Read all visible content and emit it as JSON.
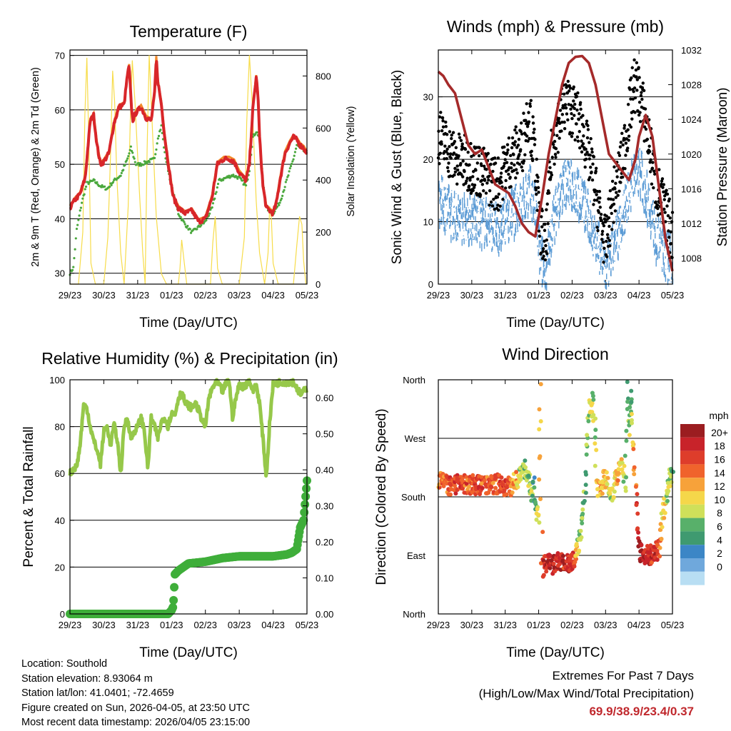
{
  "colors": {
    "temp_red": "#d8262a",
    "temp_orange": "#f28a2b",
    "dewpoint_green": "#4aa83d",
    "solar_yellow": "#f7dc4a",
    "gust_black": "#000000",
    "wind_blue": "#5b9bd5",
    "pressure_maroon": "#a52a2a",
    "rh_lightgreen": "#96c84a",
    "precip_green": "#3fae3a",
    "extremes_red": "#c0282d"
  },
  "x_tick_labels": [
    "29/23",
    "30/23",
    "31/23",
    "01/23",
    "02/23",
    "03/23",
    "04/23",
    "05/23"
  ],
  "info": {
    "location": "Location: Southold",
    "elevation": "Station elevation: 8.93064 m",
    "latlon": "Station lat/lon: 41.0401; -72.4659",
    "created": "Figure created on Sun, 2026-04-05, at 23:50 UTC",
    "latest": "Most recent data timestamp: 2026/04/05 23:15:00"
  },
  "extremes": {
    "title": "Extremes For Past 7 Days",
    "subtitle": "(High/Low/Max Wind/Total Precipitation)",
    "values": "69.9/38.9/23.4/0.37"
  },
  "chart_data": [
    {
      "id": "temperature",
      "type": "line",
      "title": "Temperature (F)",
      "xlabel": "Time (Day/UTC)",
      "ylabel": "2m & 9m T (Red, Orange) & 2m Td (Green)",
      "ylabel_right": "Solar Insolation (Yellow)",
      "ylim": [
        28,
        71
      ],
      "ylim_right": [
        0,
        900
      ],
      "xlim": [
        0,
        7
      ],
      "yticks": [
        30,
        40,
        50,
        60,
        70
      ],
      "yticks_right": [
        0,
        200,
        400,
        600,
        800
      ],
      "gridlines": [
        30,
        40,
        50,
        60,
        70
      ],
      "series": [
        {
          "name": "2m T",
          "color": "#d8262a",
          "x": [
            0,
            0.15,
            0.3,
            0.45,
            0.6,
            0.7,
            0.8,
            0.9,
            1.0,
            1.15,
            1.3,
            1.45,
            1.6,
            1.7,
            1.75,
            1.8,
            1.85,
            1.95,
            2.1,
            2.25,
            2.4,
            2.5,
            2.55,
            2.6,
            2.7,
            2.8,
            2.95,
            3.05,
            3.2,
            3.4,
            3.6,
            3.8,
            4.0,
            4.2,
            4.35,
            4.55,
            4.7,
            4.85,
            5.0,
            5.2,
            5.3,
            5.4,
            5.5,
            5.55,
            5.6,
            5.7,
            5.8,
            6.0,
            6.1,
            6.2,
            6.35,
            6.5,
            6.6,
            6.7,
            6.8,
            6.9,
            7.0
          ],
          "y": [
            42,
            43.5,
            44.5,
            47.5,
            58,
            59,
            53.5,
            50,
            50.5,
            52,
            57.5,
            60.5,
            61,
            66.5,
            68,
            62,
            58,
            59.5,
            60.5,
            58.5,
            58,
            63,
            69.5,
            65,
            61,
            55,
            48,
            44,
            42,
            41,
            41.5,
            39.5,
            40,
            44,
            50,
            51,
            51,
            50.5,
            48.5,
            47,
            50,
            60,
            66,
            63,
            55,
            46,
            42,
            41,
            43,
            47,
            52,
            54,
            55,
            54.5,
            53.5,
            53,
            52
          ]
        },
        {
          "name": "2m Td",
          "color": "#4aa83d",
          "x": [
            0,
            0.1,
            0.2,
            0.35,
            0.5,
            0.7,
            0.9,
            1.1,
            1.3,
            1.5,
            1.7,
            1.8,
            1.95,
            2.1,
            2.3,
            2.5,
            2.6,
            2.7,
            2.8,
            3.0,
            3.2,
            3.4,
            3.6,
            3.8,
            4.0,
            4.2,
            4.4,
            4.6,
            4.8,
            5.0,
            5.2,
            5.3,
            5.4,
            5.5,
            5.6,
            5.7,
            5.8,
            6.0,
            6.2,
            6.4,
            6.6,
            6.7,
            6.8,
            7.0
          ],
          "y": [
            30,
            31,
            38,
            43,
            46.5,
            47,
            46,
            45.5,
            47,
            48,
            51,
            53,
            50,
            50,
            50.5,
            51,
            55,
            57,
            52,
            46,
            41,
            39,
            37.5,
            38.5,
            39.5,
            42,
            47,
            47.5,
            48,
            47.5,
            46,
            49,
            55,
            56,
            55,
            47,
            42,
            41,
            43,
            47,
            51,
            53.5,
            53,
            52
          ]
        },
        {
          "name": "Solar Insolation",
          "color": "#f7dc4a",
          "axis": "right",
          "x": [
            0.0,
            0.25,
            0.38,
            0.44,
            0.5,
            0.56,
            0.62,
            0.75,
            0.9,
            1.0,
            1.12,
            1.2,
            1.26,
            1.32,
            1.38,
            1.5,
            1.6,
            1.72,
            1.78,
            1.84,
            1.92,
            2.05,
            2.15,
            2.22,
            2.28,
            2.34,
            2.42,
            2.55,
            2.7,
            2.85,
            3.0,
            3.2,
            3.25,
            3.3,
            3.37,
            3.45,
            3.6,
            3.8,
            4.0,
            4.15,
            4.22,
            4.29,
            4.36,
            4.5,
            4.65,
            4.8,
            5.0,
            5.15,
            5.22,
            5.3,
            5.38,
            5.5,
            5.6,
            5.75,
            5.85,
            5.9,
            5.95,
            6.0,
            6.15,
            6.22,
            6.3,
            6.38,
            6.5,
            6.6,
            6.7,
            6.78,
            6.85,
            6.9,
            6.97
          ],
          "y": [
            0,
            0,
            200,
            650,
            870,
            520,
            80,
            0,
            0,
            0,
            180,
            500,
            820,
            700,
            420,
            120,
            0,
            300,
            620,
            860,
            700,
            360,
            120,
            0,
            520,
            880,
            640,
            260,
            40,
            0,
            0,
            0,
            60,
            170,
            90,
            0,
            0,
            0,
            0,
            0,
            160,
            260,
            60,
            0,
            0,
            0,
            0,
            180,
            620,
            880,
            700,
            320,
            120,
            0,
            120,
            300,
            250,
            80,
            0,
            0,
            0,
            0,
            0,
            0,
            150,
            260,
            230,
            90,
            0
          ]
        }
      ]
    },
    {
      "id": "winds",
      "type": "scatter",
      "title": "Winds (mph) & Pressure (mb)",
      "xlabel": "Time (Day/UTC)",
      "ylabel": "Sonic Wind & Gust (Blue, Black)",
      "ylabel_right": "Station Pressure (Maroon)",
      "ylim": [
        0,
        37.5
      ],
      "ylim_right": [
        1005,
        1032
      ],
      "xlim": [
        0,
        7
      ],
      "yticks": [
        0,
        10,
        20,
        30
      ],
      "yticks_right": [
        1008,
        1012,
        1016,
        1020,
        1024,
        1028,
        1032
      ],
      "gridlines": [
        10,
        20,
        30
      ],
      "series": [
        {
          "name": "Gust",
          "color": "#000000",
          "x": [
            0,
            0.5,
            1.0,
            1.5,
            1.8,
            2.0,
            2.5,
            2.7,
            2.9,
            3.0,
            3.2,
            3.4,
            3.6,
            3.8,
            4.0,
            4.3,
            4.6,
            4.8,
            5.0,
            5.2,
            5.5,
            5.7,
            5.85,
            6.0,
            6.2,
            6.5,
            6.8,
            7.0
          ],
          "y": [
            24,
            20,
            19,
            17,
            16,
            19,
            22,
            28,
            20,
            11,
            5,
            22,
            26,
            29,
            28,
            25,
            18,
            12,
            6,
            13,
            20,
            27,
            32,
            31,
            26,
            16,
            11,
            8
          ]
        },
        {
          "name": "Sonic Wind",
          "color": "#5b9bd5",
          "x": [
            0,
            0.5,
            1.0,
            1.5,
            1.8,
            2.0,
            2.5,
            2.7,
            2.9,
            3.0,
            3.2,
            3.4,
            3.6,
            3.8,
            4.0,
            4.3,
            4.6,
            4.8,
            5.0,
            5.2,
            5.5,
            5.7,
            5.85,
            6.0,
            6.2,
            6.5,
            6.8,
            7.0
          ],
          "y": [
            14,
            11,
            11,
            10,
            9,
            11,
            13,
            16,
            12,
            6,
            2,
            10,
            14,
            17,
            16,
            14,
            9,
            6,
            2,
            6,
            11,
            15,
            19,
            19,
            15,
            8,
            5,
            4
          ]
        },
        {
          "name": "Station Pressure",
          "color": "#a52a2a",
          "axis": "right",
          "x": [
            0,
            0.15,
            0.3,
            0.5,
            0.7,
            0.9,
            1.1,
            1.3,
            1.5,
            1.7,
            1.9,
            2.1,
            2.3,
            2.5,
            2.7,
            2.9,
            3.1,
            3.3,
            3.5,
            3.7,
            3.9,
            4.1,
            4.3,
            4.5,
            4.7,
            4.9,
            5.1,
            5.3,
            5.5,
            5.7,
            5.9,
            6.0,
            6.2,
            6.4,
            6.6,
            6.8,
            7.0
          ],
          "y": [
            1029.5,
            1029,
            1028,
            1027,
            1024,
            1021,
            1020,
            1020.5,
            1018.5,
            1016.5,
            1016,
            1015.5,
            1014,
            1012,
            1011,
            1010.5,
            1015,
            1020,
            1024,
            1028,
            1030.5,
            1031.2,
            1031.3,
            1030.5,
            1028,
            1024,
            1020,
            1019,
            1018,
            1017,
            1019.5,
            1022,
            1024.5,
            1022,
            1016,
            1010,
            1006.5
          ]
        }
      ]
    },
    {
      "id": "humidity",
      "type": "line",
      "title": "Relative Humidity (%) & Precipitation (in)",
      "xlabel": "Time (Day/UTC)",
      "ylabel": "Percent & Total Rainfall",
      "ylim": [
        0,
        100
      ],
      "ylim_right": [
        0,
        0.65
      ],
      "xlim": [
        0,
        7
      ],
      "yticks": [
        0,
        20,
        40,
        60,
        80,
        100
      ],
      "yticks_right": [
        "0.00",
        "0.10",
        "0.20",
        "0.30",
        "0.40",
        "0.50",
        "0.60"
      ],
      "gridlines": [
        20,
        40,
        60,
        80
      ],
      "series": [
        {
          "name": "Relative Humidity",
          "color": "#96c84a",
          "x": [
            0,
            0.1,
            0.2,
            0.3,
            0.4,
            0.5,
            0.6,
            0.7,
            0.8,
            0.9,
            1.0,
            1.1,
            1.2,
            1.3,
            1.4,
            1.5,
            1.6,
            1.7,
            1.8,
            1.9,
            2.0,
            2.1,
            2.2,
            2.3,
            2.4,
            2.5,
            2.6,
            2.7,
            2.8,
            2.9,
            3.0,
            3.1,
            3.2,
            3.3,
            3.4,
            3.5,
            3.6,
            3.7,
            3.8,
            3.9,
            4.0,
            4.1,
            4.2,
            4.3,
            4.4,
            4.5,
            4.6,
            4.7,
            4.8,
            4.9,
            5.0,
            5.1,
            5.2,
            5.3,
            5.4,
            5.5,
            5.6,
            5.7,
            5.8,
            5.9,
            6.0,
            6.2,
            6.4,
            6.6,
            6.8,
            7.0
          ],
          "y": [
            60,
            62,
            63,
            72,
            89,
            88,
            80,
            74,
            70,
            64,
            78,
            80,
            72,
            81,
            74,
            60,
            80,
            84,
            75,
            78,
            80,
            84,
            78,
            62,
            84,
            80,
            75,
            82,
            84,
            80,
            86,
            85,
            92,
            95,
            90,
            89,
            88,
            90,
            87,
            83,
            80,
            92,
            96,
            99,
            98,
            95,
            98,
            100,
            84,
            92,
            98,
            97,
            98,
            100,
            95,
            98,
            90,
            75,
            58,
            82,
            98,
            99,
            99,
            99,
            94,
            96
          ]
        },
        {
          "name": "Total Precipitation",
          "color": "#3fae3a",
          "axis": "right",
          "x": [
            0,
            1.0,
            2.0,
            2.9,
            3.0,
            3.05,
            3.1,
            3.2,
            3.5,
            4.0,
            4.5,
            5.0,
            5.5,
            6.0,
            6.4,
            6.55,
            6.7,
            6.8,
            6.9,
            7.0
          ],
          "y": [
            0,
            0,
            0,
            0,
            0.01,
            0.02,
            0.11,
            0.12,
            0.14,
            0.145,
            0.155,
            0.16,
            0.16,
            0.16,
            0.165,
            0.17,
            0.18,
            0.24,
            0.26,
            0.37
          ]
        }
      ]
    },
    {
      "id": "wind_direction",
      "type": "scatter",
      "title": "Wind Direction",
      "xlabel": "Time (Day/UTC)",
      "ylabel": "Direction (Colored By Speed)",
      "ylim": [
        0,
        360
      ],
      "xlim": [
        0,
        7
      ],
      "ytick_labels": [
        "North",
        "East",
        "South",
        "West",
        "North"
      ],
      "gridlines": [
        90,
        180,
        270
      ],
      "colorbar": {
        "title": "mph",
        "labels": [
          "20+",
          "18",
          "16",
          "14",
          "12",
          "10",
          "8",
          "6",
          "4",
          "2",
          "0"
        ],
        "colors": [
          "#9b1d20",
          "#c8232a",
          "#de3d2b",
          "#f0632c",
          "#f7a23a",
          "#f5d74a",
          "#cfe05a",
          "#58b06a",
          "#3f9a70",
          "#3c86c6",
          "#6fa8dc",
          "#b8def3"
        ]
      },
      "series": [
        {
          "name": "Direction",
          "x": [
            0.0,
            0.2,
            0.4,
            0.6,
            0.8,
            1.0,
            1.2,
            1.4,
            1.6,
            1.8,
            2.0,
            2.2,
            2.4,
            2.6,
            2.8,
            2.85,
            2.9,
            3.0,
            3.05,
            3.1,
            3.2,
            3.4,
            3.6,
            3.8,
            4.0,
            4.1,
            4.2,
            4.3,
            4.4,
            4.5,
            4.6,
            4.65,
            4.75,
            4.9,
            5.0,
            5.1,
            5.2,
            5.3,
            5.4,
            5.5,
            5.6,
            5.65,
            5.7,
            5.75,
            6.0,
            6.2,
            6.4,
            6.5,
            6.6,
            6.7,
            6.8,
            6.9,
            7.0
          ],
          "y": [
            205,
            200,
            195,
            205,
            200,
            198,
            200,
            195,
            200,
            200,
            195,
            198,
            210,
            225,
            185,
            200,
            165,
            150,
            360,
            70,
            80,
            75,
            80,
            75,
            80,
            90,
            110,
            140,
            200,
            320,
            310,
            330,
            190,
            200,
            210,
            195,
            185,
            210,
            220,
            230,
            200,
            350,
            270,
            340,
            95,
            90,
            92,
            95,
            100,
            140,
            180,
            200,
            220
          ],
          "speed": [
            13,
            14,
            15,
            16,
            15,
            14,
            16,
            15,
            14,
            15,
            16,
            14,
            10,
            6,
            8,
            4,
            5,
            10,
            10,
            16,
            18,
            18,
            18,
            17,
            17,
            13,
            7,
            6,
            5,
            8,
            10,
            6,
            11,
            12,
            10,
            9,
            8,
            11,
            12,
            9,
            8,
            6,
            8,
            6,
            20,
            18,
            17,
            18,
            15,
            10,
            9,
            8,
            6
          ]
        }
      ]
    }
  ]
}
